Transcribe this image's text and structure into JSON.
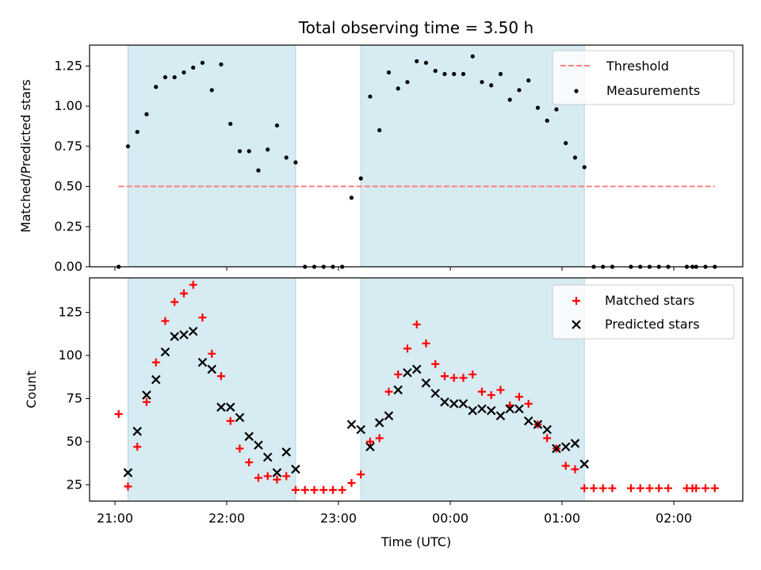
{
  "chart_data": [
    {
      "type": "scatter",
      "title": "Total observing time = 3.50 h",
      "ylabel": "Matched/Predicted stars",
      "xlabel": "",
      "ylim": [
        0,
        1.38
      ],
      "xlim": [
        "20:52",
        "02:45"
      ],
      "y_ticks": [
        "0.00",
        "0.25",
        "0.50",
        "0.75",
        "1.00",
        "1.25"
      ],
      "legend_position": "top-right",
      "colors": {
        "threshold": "#ff7f7f",
        "measurements": "#000000",
        "shade": "#add8e6"
      },
      "shaded_intervals": [
        [
          "21:07",
          "22:37"
        ],
        [
          "23:12",
          "01:12"
        ]
      ],
      "threshold": {
        "name": "Threshold",
        "y": 0.5,
        "x_range": [
          "21:02",
          "02:22"
        ]
      },
      "series": [
        {
          "name": "Measurements",
          "x": [
            "21:02",
            "21:07",
            "21:12",
            "21:17",
            "21:22",
            "21:27",
            "21:32",
            "21:37",
            "21:42",
            "21:47",
            "21:52",
            "21:57",
            "22:02",
            "22:07",
            "22:12",
            "22:17",
            "22:22",
            "22:27",
            "22:32",
            "22:37",
            "22:42",
            "22:47",
            "22:52",
            "22:57",
            "23:02",
            "23:07",
            "23:12",
            "23:17",
            "23:22",
            "23:27",
            "23:32",
            "23:37",
            "23:42",
            "23:47",
            "23:52",
            "23:57",
            "00:02",
            "00:07",
            "00:12",
            "00:17",
            "00:22",
            "00:27",
            "00:32",
            "00:37",
            "00:42",
            "00:47",
            "00:52",
            "00:57",
            "01:02",
            "01:07",
            "01:12",
            "01:17",
            "01:22",
            "01:27",
            "01:37",
            "01:42",
            "01:47",
            "01:52",
            "01:57",
            "02:07",
            "02:10",
            "02:12",
            "02:17",
            "02:22"
          ],
          "y": [
            0.0,
            0.75,
            0.84,
            0.95,
            1.12,
            1.18,
            1.18,
            1.21,
            1.24,
            1.27,
            1.1,
            1.26,
            0.89,
            0.72,
            0.72,
            0.6,
            0.73,
            0.88,
            0.68,
            0.65,
            0.0,
            0.0,
            0.0,
            0.0,
            0.0,
            0.43,
            0.55,
            1.06,
            0.85,
            1.21,
            1.11,
            1.15,
            1.28,
            1.27,
            1.22,
            1.2,
            1.2,
            1.2,
            1.31,
            1.15,
            1.13,
            1.2,
            1.04,
            1.1,
            1.16,
            0.99,
            0.91,
            0.98,
            0.77,
            0.68,
            0.62,
            0.0,
            0.0,
            0.0,
            0.0,
            0.0,
            0.0,
            0.0,
            0.0,
            0.0,
            0.0,
            0.0,
            0.0,
            0.0
          ]
        }
      ]
    },
    {
      "type": "scatter",
      "title": "",
      "ylabel": "Count",
      "xlabel": "Time (UTC)",
      "ylim": [
        15.5,
        145
      ],
      "xlim": [
        "20:52",
        "02:45"
      ],
      "x_ticks": [
        "21:00",
        "22:00",
        "23:00",
        "00:00",
        "01:00",
        "02:00"
      ],
      "y_ticks": [
        "25",
        "50",
        "75",
        "100",
        "125"
      ],
      "legend_position": "top-right",
      "colors": {
        "matched": "#ff0000",
        "predicted": "#000000",
        "shade": "#add8e6"
      },
      "shaded_intervals": [
        [
          "21:07",
          "22:37"
        ],
        [
          "23:12",
          "01:12"
        ]
      ],
      "series": [
        {
          "name": "Matched stars",
          "x": [
            "21:02",
            "21:07",
            "21:12",
            "21:17",
            "21:22",
            "21:27",
            "21:32",
            "21:37",
            "21:42",
            "21:47",
            "21:52",
            "21:57",
            "22:02",
            "22:07",
            "22:12",
            "22:17",
            "22:22",
            "22:27",
            "22:32",
            "22:37",
            "22:42",
            "22:47",
            "22:52",
            "22:57",
            "23:02",
            "23:07",
            "23:12",
            "23:17",
            "23:22",
            "23:27",
            "23:32",
            "23:37",
            "23:42",
            "23:47",
            "23:52",
            "23:57",
            "00:02",
            "00:07",
            "00:12",
            "00:17",
            "00:22",
            "00:27",
            "00:32",
            "00:37",
            "00:42",
            "00:47",
            "00:52",
            "00:57",
            "01:02",
            "01:07",
            "01:12",
            "01:17",
            "01:22",
            "01:27",
            "01:37",
            "01:42",
            "01:47",
            "01:52",
            "01:57",
            "02:07",
            "02:10",
            "02:12",
            "02:17",
            "02:22"
          ],
          "y": [
            66,
            24,
            47,
            73,
            96,
            120,
            131,
            136,
            141,
            122,
            101,
            88,
            62,
            46,
            38,
            29,
            30,
            28,
            30,
            22,
            22,
            22,
            22,
            22,
            22,
            26,
            31,
            50,
            52,
            79,
            89,
            104,
            118,
            107,
            95,
            88,
            87,
            87,
            89,
            79,
            77,
            80,
            71,
            76,
            72,
            60,
            52,
            46,
            36,
            34,
            23,
            23,
            23,
            23,
            23,
            23,
            23,
            23,
            23,
            23,
            23,
            23,
            23,
            23
          ]
        },
        {
          "name": "Predicted stars",
          "x": [
            "21:07",
            "21:12",
            "21:17",
            "21:22",
            "21:27",
            "21:32",
            "21:37",
            "21:42",
            "21:47",
            "21:52",
            "21:57",
            "22:02",
            "22:07",
            "22:12",
            "22:17",
            "22:22",
            "22:27",
            "22:32",
            "22:37",
            "23:07",
            "23:12",
            "23:17",
            "23:22",
            "23:27",
            "23:32",
            "23:37",
            "23:42",
            "23:47",
            "23:52",
            "23:57",
            "00:02",
            "00:07",
            "00:12",
            "00:17",
            "00:22",
            "00:27",
            "00:32",
            "00:37",
            "00:42",
            "00:47",
            "00:52",
            "00:57",
            "01:02",
            "01:07",
            "01:12"
          ],
          "y": [
            32,
            56,
            77,
            86,
            102,
            111,
            112,
            114,
            96,
            92,
            70,
            70,
            64,
            53,
            48,
            41,
            32,
            44,
            34,
            60,
            57,
            47,
            61,
            65,
            80,
            90,
            92,
            84,
            78,
            73,
            72,
            72,
            68,
            69,
            68,
            65,
            69,
            69,
            62,
            60,
            57,
            46,
            47,
            49,
            37
          ]
        }
      ]
    }
  ]
}
